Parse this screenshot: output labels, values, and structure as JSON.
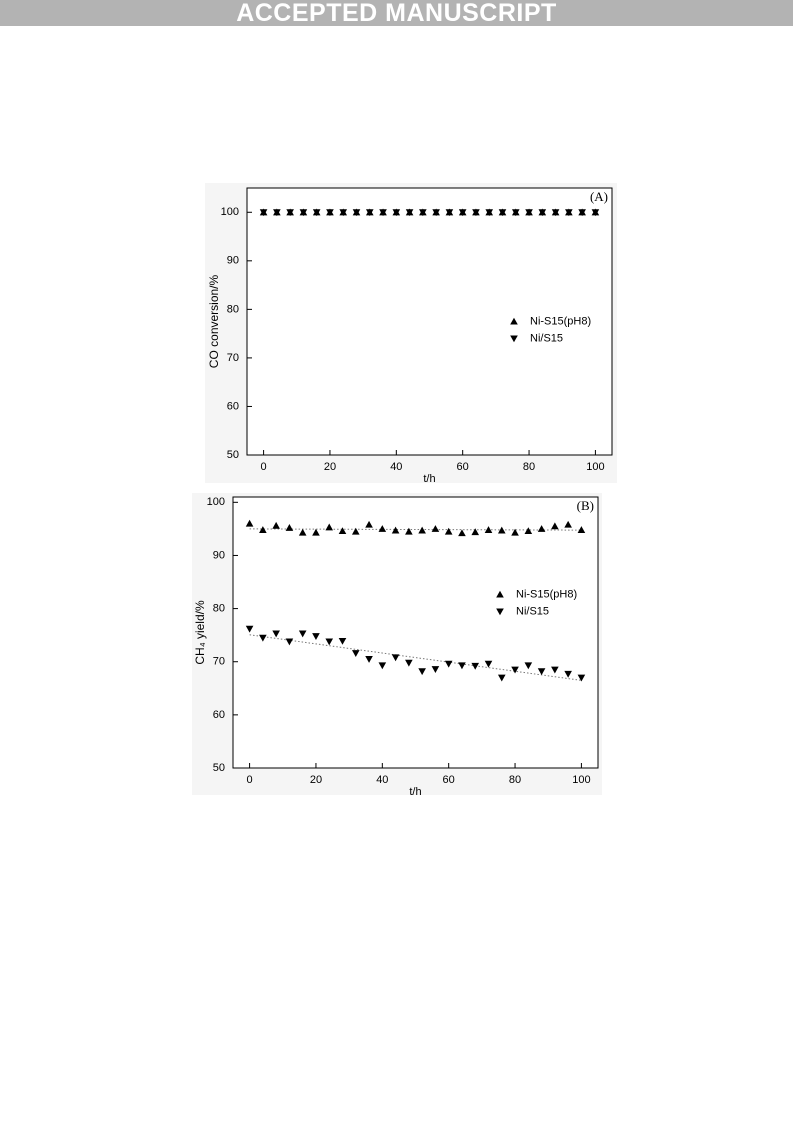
{
  "header": {
    "title": "ACCEPTED MANUSCRIPT"
  },
  "chart_data": [
    {
      "type": "scatter",
      "annotation": "(A)",
      "x_label": "t/h",
      "y_label": "CO conversion/%",
      "x": [
        0,
        4,
        8,
        12,
        16,
        20,
        24,
        28,
        32,
        36,
        40,
        44,
        48,
        52,
        56,
        60,
        64,
        68,
        72,
        76,
        80,
        84,
        88,
        92,
        96,
        100
      ],
      "series": [
        {
          "name": "Ni-S15(pH8)",
          "color": "#000000",
          "marker": "triangle-up",
          "trendline": false,
          "values": [
            100,
            100,
            100,
            100,
            100,
            100,
            100,
            100,
            100,
            100,
            100,
            100,
            100,
            100,
            100,
            100,
            100,
            100,
            100,
            100,
            100,
            100,
            100,
            100,
            100,
            100
          ]
        },
        {
          "name": "Ni/S15",
          "color": "#000000",
          "marker": "triangle-down",
          "trendline": false,
          "values": [
            100,
            100,
            100,
            100,
            100,
            100,
            100,
            100,
            100,
            100,
            100,
            100,
            100,
            100,
            100,
            100,
            100,
            100,
            100,
            100,
            100,
            100,
            100,
            100,
            100,
            100
          ]
        }
      ],
      "xlim": [
        -5,
        105
      ],
      "xticks": [
        0,
        20,
        40,
        60,
        80,
        100
      ],
      "ylim": [
        50,
        105
      ],
      "yticks": [
        50,
        60,
        70,
        80,
        90,
        100
      ],
      "legend": "center right"
    },
    {
      "type": "scatter",
      "annotation": "(B)",
      "x_label": "t/h",
      "y_label": "CH₄ yield/%",
      "x": [
        0,
        4,
        8,
        12,
        16,
        20,
        24,
        28,
        32,
        36,
        40,
        44,
        48,
        52,
        56,
        60,
        64,
        68,
        72,
        76,
        80,
        84,
        88,
        92,
        96,
        100
      ],
      "series": [
        {
          "name": "Ni-S15(pH8)",
          "color": "#000000",
          "marker": "triangle-up",
          "trendline": true,
          "values": [
            96,
            94.8,
            95.6,
            95.2,
            94.3,
            94.3,
            95.3,
            94.6,
            94.5,
            95.8,
            95,
            94.7,
            94.5,
            94.7,
            95,
            94.5,
            94.2,
            94.4,
            94.8,
            94.7,
            94.3,
            94.6,
            95,
            95.5,
            95.8,
            94.8
          ]
        },
        {
          "name": "Ni/S15",
          "color": "#000000",
          "marker": "triangle-down",
          "trendline": true,
          "values": [
            76.2,
            74.5,
            75.3,
            73.8,
            75.3,
            74.8,
            73.8,
            73.9,
            71.6,
            70.5,
            69.3,
            70.8,
            69.8,
            68.2,
            68.6,
            69.6,
            69.3,
            69.2,
            69.6,
            67,
            68.5,
            69.3,
            68.2,
            68.5,
            67.7,
            67
          ]
        }
      ],
      "xlim": [
        -5,
        105
      ],
      "xticks": [
        0,
        20,
        40,
        60,
        80,
        100
      ],
      "ylim": [
        50,
        101
      ],
      "yticks": [
        50,
        60,
        70,
        80,
        90,
        100
      ],
      "legend": "center right"
    }
  ]
}
